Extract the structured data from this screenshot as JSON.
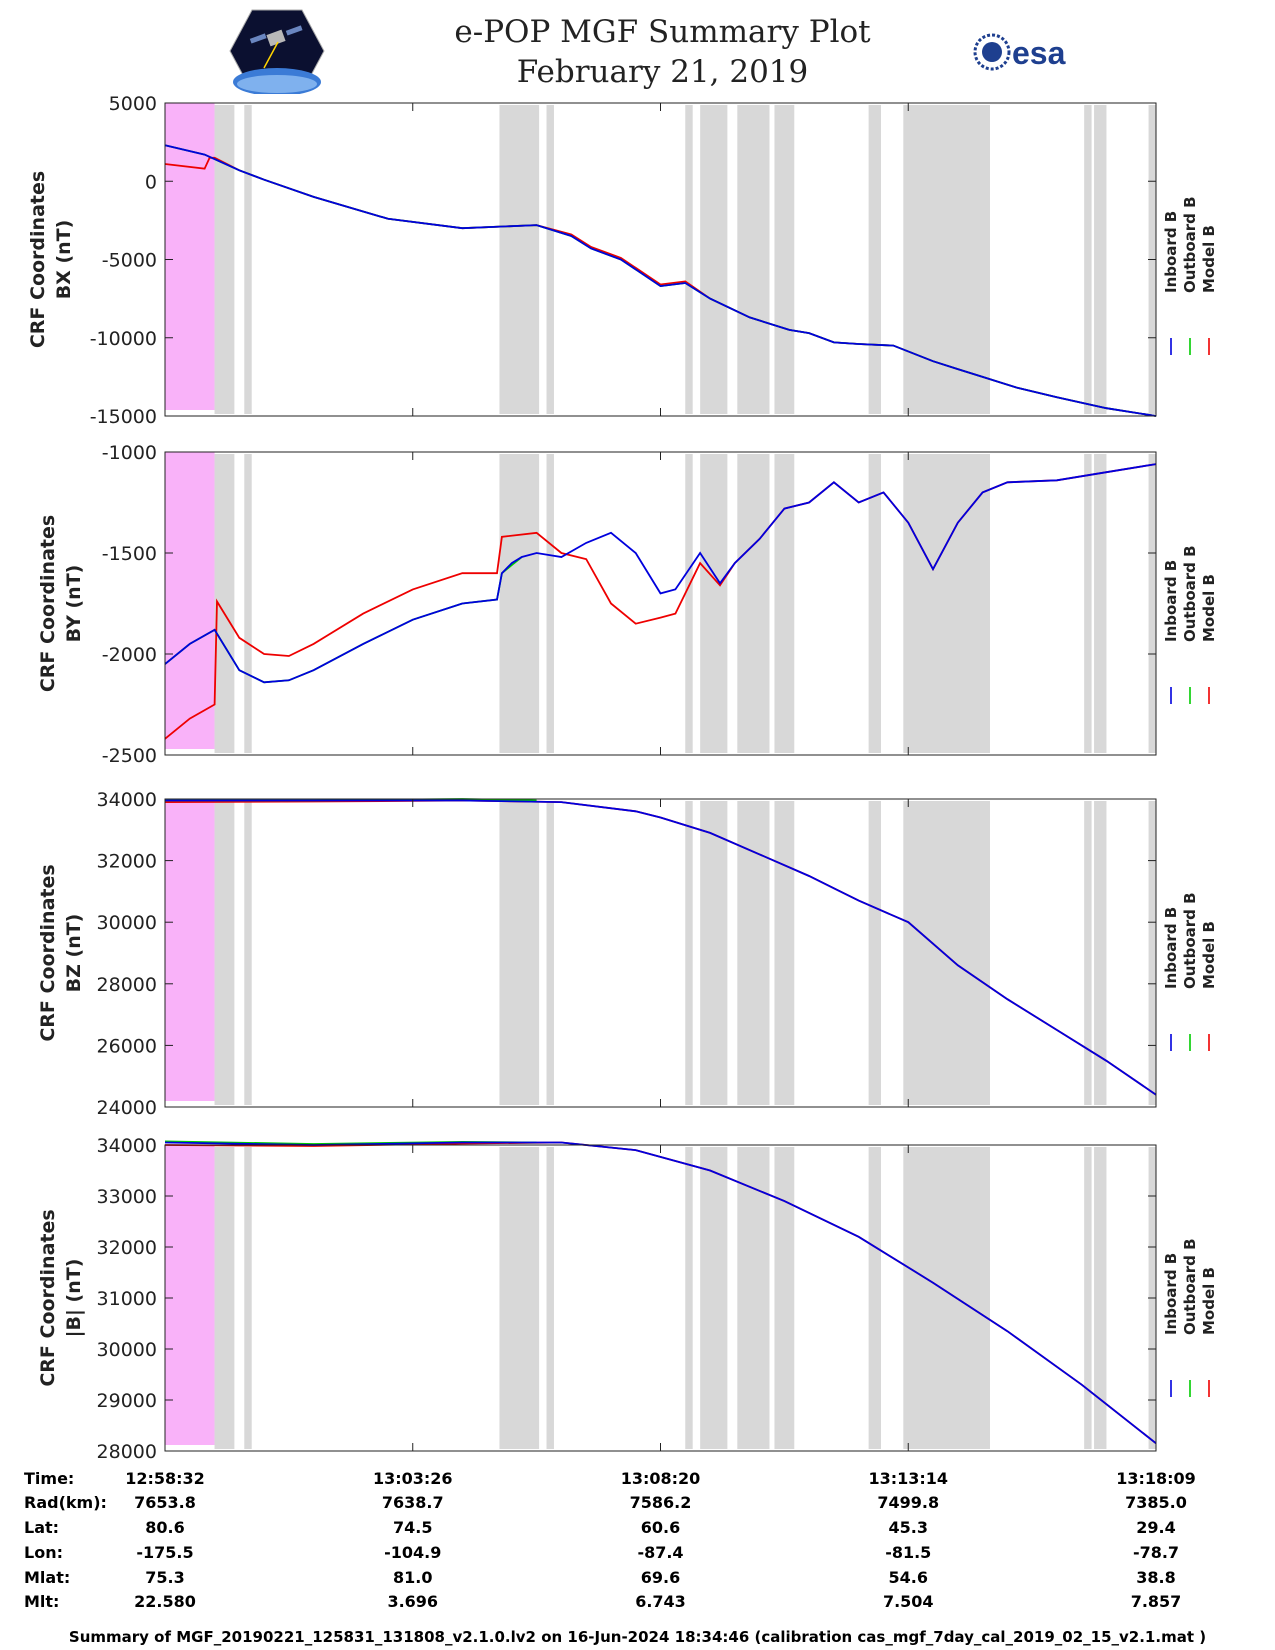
{
  "header": {
    "title": "e-POP MGF Summary Plot",
    "date": "February 21, 2019",
    "esa_text": "esa"
  },
  "colors": {
    "inboard": "#0000dd",
    "outboard": "#00cc00",
    "model": "#ee0000",
    "gap": "#d8d8d8",
    "highlight": "#f9b2f9"
  },
  "chart_data": [
    {
      "type": "line",
      "ylabel": [
        "CRF Coordinates",
        "BX (nT)"
      ],
      "ylim": [
        -15000,
        5000
      ],
      "yticks": [
        -15000,
        -10000,
        -5000,
        0,
        5000
      ],
      "legend": [
        "Inboard B",
        "Outboard B",
        "Model B"
      ],
      "series": [
        {
          "name": "Inboard B",
          "x": [
            0,
            8,
            15,
            20,
            30,
            45,
            60,
            75,
            82,
            86,
            92,
            100,
            105,
            110,
            118,
            126,
            130,
            135,
            140,
            147,
            155,
            160,
            165,
            172,
            180,
            190,
            200
          ],
          "y": [
            2300,
            1700,
            700,
            100,
            -1000,
            -2400,
            -3000,
            -2800,
            -3500,
            -4300,
            -5000,
            -6700,
            -6500,
            -7500,
            -8700,
            -9500,
            -9700,
            -10300,
            -10400,
            -10500,
            -11500,
            -12000,
            -12500,
            -13200,
            -13800,
            -14500,
            -15000
          ]
        },
        {
          "name": "Outboard B",
          "x": [
            0,
            8,
            15,
            20,
            30,
            45,
            60,
            75,
            82,
            86,
            92,
            100,
            105,
            110,
            118,
            126,
            130,
            135,
            140,
            147,
            155,
            160,
            165,
            172,
            180,
            190,
            200
          ],
          "y": [
            2300,
            1700,
            700,
            100,
            -1000,
            -2400,
            -3000,
            -2800,
            -3500,
            -4300,
            -5000,
            -6700,
            -6500,
            -7500,
            -8700,
            -9500,
            -9700,
            -10300,
            -10400,
            -10500,
            -11500,
            -12000,
            -12500,
            -13200,
            -13800,
            -14500,
            -15000
          ]
        },
        {
          "name": "Model B",
          "x": [
            0,
            8,
            9,
            10,
            15,
            20,
            30,
            45,
            60,
            75,
            82,
            86,
            92,
            100,
            105,
            110,
            118,
            126,
            130,
            135,
            140,
            147,
            155,
            160,
            165,
            172,
            180,
            190,
            200
          ],
          "y": [
            1100,
            800,
            1500,
            1500,
            700,
            100,
            -1000,
            -2400,
            -3000,
            -2800,
            -3400,
            -4200,
            -4900,
            -6600,
            -6400,
            -7500,
            -8700,
            -9500,
            -9700,
            -10300,
            -10400,
            -10500,
            -11500,
            -12000,
            -12500,
            -13200,
            -13800,
            -14500,
            -15000
          ]
        }
      ]
    },
    {
      "type": "line",
      "ylabel": [
        "CRF Coordinates",
        "BY (nT)"
      ],
      "ylim": [
        -2500,
        -1000
      ],
      "yticks": [
        -2500,
        -2000,
        -1500,
        -1000
      ],
      "legend": [
        "Inboard B",
        "Outboard B",
        "Model B"
      ],
      "series": [
        {
          "name": "Inboard B",
          "x": [
            0,
            5,
            10,
            15,
            20,
            25,
            30,
            40,
            50,
            60,
            67,
            68,
            70,
            72,
            75,
            80,
            85,
            90,
            95,
            100,
            103,
            108,
            112,
            115,
            120,
            125,
            130,
            135,
            140,
            145,
            150,
            155,
            160,
            165,
            170,
            180,
            190,
            200
          ],
          "y": [
            -2050,
            -1950,
            -1880,
            -2080,
            -2140,
            -2130,
            -2080,
            -1950,
            -1830,
            -1750,
            -1730,
            -1600,
            -1550,
            -1520,
            -1500,
            -1520,
            -1450,
            -1400,
            -1500,
            -1700,
            -1680,
            -1500,
            -1650,
            -1550,
            -1430,
            -1280,
            -1250,
            -1150,
            -1250,
            -1200,
            -1350,
            -1580,
            -1350,
            -1200,
            -1150,
            -1140,
            -1100,
            -1060
          ]
        },
        {
          "name": "Outboard B",
          "x": [
            0,
            5,
            10,
            15,
            20,
            25,
            30,
            40,
            50,
            60,
            67,
            68,
            70,
            72
          ],
          "y": [
            -2050,
            -1950,
            -1880,
            -2080,
            -2140,
            -2130,
            -2080,
            -1950,
            -1830,
            -1750,
            -1730,
            -1600,
            -1560,
            -1520
          ]
        },
        {
          "name": "Model B",
          "x": [
            0,
            5,
            10,
            10.5,
            15,
            20,
            25,
            30,
            40,
            50,
            60,
            67,
            68,
            75,
            80,
            85,
            90,
            95,
            100,
            103,
            108,
            112,
            115,
            120,
            125,
            130,
            135,
            140,
            145,
            150,
            155,
            160,
            165,
            170,
            180,
            190,
            200
          ],
          "y": [
            -2420,
            -2320,
            -2250,
            -1740,
            -1920,
            -2000,
            -2010,
            -1950,
            -1800,
            -1680,
            -1600,
            -1600,
            -1420,
            -1400,
            -1500,
            -1530,
            -1750,
            -1850,
            -1820,
            -1800,
            -1550,
            -1660,
            -1550,
            -1430,
            -1280,
            -1250,
            -1150,
            -1250,
            -1200,
            -1350,
            -1580,
            -1350,
            -1200,
            -1150,
            -1140,
            -1100,
            -1060
          ]
        }
      ]
    },
    {
      "type": "line",
      "ylabel": [
        "CRF Coordinates",
        "BZ (nT)"
      ],
      "ylim": [
        24000,
        34000
      ],
      "yticks": [
        24000,
        26000,
        28000,
        30000,
        32000,
        34000
      ],
      "legend": [
        "Inboard B",
        "Outboard B",
        "Model B"
      ],
      "series": [
        {
          "name": "Inboard B",
          "x": [
            0,
            30,
            60,
            80,
            95,
            100,
            110,
            120,
            130,
            140,
            150,
            160,
            170,
            180,
            190,
            200
          ],
          "y": [
            33950,
            33950,
            33950,
            33900,
            33600,
            33400,
            32900,
            32200,
            31500,
            30700,
            30000,
            28600,
            27500,
            26500,
            25500,
            24400
          ]
        },
        {
          "name": "Outboard B",
          "x": [
            0,
            30,
            60,
            75
          ],
          "y": [
            33950,
            33950,
            34000,
            33950
          ]
        },
        {
          "name": "Model B",
          "x": [
            0,
            30,
            60,
            80,
            95,
            100,
            110,
            120,
            130,
            140,
            150,
            160,
            170,
            180,
            190,
            200
          ],
          "y": [
            33900,
            33920,
            33950,
            33900,
            33600,
            33400,
            32900,
            32200,
            31500,
            30700,
            30000,
            28600,
            27500,
            26500,
            25500,
            24400
          ]
        }
      ]
    },
    {
      "type": "line",
      "ylabel": [
        "CRF Coordinates",
        "|B| (nT)"
      ],
      "ylim": [
        28000,
        34000
      ],
      "yticks": [
        28000,
        29000,
        30000,
        31000,
        32000,
        33000,
        34000
      ],
      "legend": [
        "Inboard B",
        "Outboard B",
        "Model B"
      ],
      "series": [
        {
          "name": "Inboard B",
          "x": [
            0,
            30,
            60,
            80,
            95,
            110,
            125,
            140,
            155,
            170,
            185,
            200
          ],
          "y": [
            34050,
            34000,
            34050,
            34050,
            33900,
            33500,
            32900,
            32200,
            31300,
            30350,
            29300,
            28150
          ]
        },
        {
          "name": "Outboard B",
          "x": [
            0,
            30,
            60,
            75
          ],
          "y": [
            34070,
            34020,
            34060,
            34050
          ]
        },
        {
          "name": "Model B",
          "x": [
            0,
            30,
            60,
            80,
            95,
            110,
            125,
            140,
            155,
            170,
            185,
            200
          ],
          "y": [
            34000,
            33980,
            34030,
            34050,
            33900,
            33500,
            32900,
            32200,
            31300,
            30350,
            29300,
            28150
          ]
        }
      ]
    }
  ],
  "gaps": [
    [
      10,
      14
    ],
    [
      16,
      17.5
    ],
    [
      67.5,
      75.5
    ],
    [
      77,
      78.5
    ],
    [
      105,
      106.5
    ],
    [
      108,
      113.5
    ],
    [
      115.5,
      122
    ],
    [
      123,
      127
    ],
    [
      142,
      144.5
    ],
    [
      149,
      166.5
    ],
    [
      185.5,
      187
    ],
    [
      187.5,
      190
    ],
    [
      198.5,
      200
    ]
  ],
  "highlight": [
    0,
    10
  ],
  "info": {
    "labels": [
      "Time:",
      "Rad(km):",
      "Lat:",
      "Lon:",
      "Mlat:",
      "Mlt:"
    ],
    "columns": [
      [
        "12:58:32",
        "7653.8",
        "80.6",
        "-175.5",
        "75.3",
        "22.580"
      ],
      [
        "13:03:26",
        "7638.7",
        "74.5",
        "-104.9",
        "81.0",
        "3.696"
      ],
      [
        "13:08:20",
        "7586.2",
        "60.6",
        "-87.4",
        "69.6",
        "6.743"
      ],
      [
        "13:13:14",
        "7499.8",
        "45.3",
        "-81.5",
        "54.6",
        "7.504"
      ],
      [
        "13:18:09",
        "7385.0",
        "29.4",
        "-78.7",
        "38.8",
        "7.857"
      ]
    ]
  },
  "footer": "Summary of MGF_20190221_125831_131808_v2.1.0.lv2 on 16-Jun-2024 18:34:46 (calibration cas_mgf_7day_cal_2019_02_15_v2.1.mat )"
}
